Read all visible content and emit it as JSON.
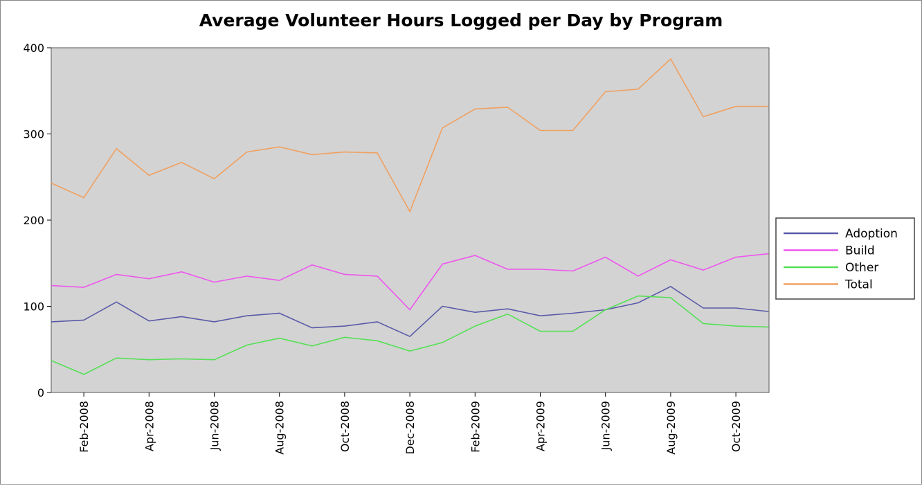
{
  "chart_data": {
    "type": "line",
    "title": "Average Volunteer Hours Logged per Day by Program",
    "xlabel": "",
    "ylabel": "",
    "ylim": [
      0,
      400
    ],
    "yticks": [
      "0",
      "100",
      "200",
      "300",
      "400"
    ],
    "ytick_values": [
      0,
      100,
      200,
      300,
      400
    ],
    "x": [
      "Jan-2008",
      "Feb-2008",
      "Mar-2008",
      "Apr-2008",
      "May-2008",
      "Jun-2008",
      "Jul-2008",
      "Aug-2008",
      "Sep-2008",
      "Oct-2008",
      "Nov-2008",
      "Dec-2008",
      "Jan-2009",
      "Feb-2009",
      "Mar-2009",
      "Apr-2009",
      "May-2009",
      "Jun-2009",
      "Jul-2009",
      "Aug-2009",
      "Sep-2009",
      "Oct-2009",
      "Nov-2009"
    ],
    "xticks": [
      "Feb-2008",
      "Apr-2008",
      "Jun-2008",
      "Aug-2008",
      "Oct-2008",
      "Dec-2008",
      "Feb-2009",
      "Apr-2009",
      "Jun-2009",
      "Aug-2009",
      "Oct-2009"
    ],
    "grid": false,
    "legend_position": "right",
    "series": [
      {
        "name": "Adoption",
        "color": "#5a5aa8",
        "values": [
          82,
          84,
          105,
          83,
          88,
          82,
          89,
          92,
          75,
          77,
          82,
          65,
          100,
          93,
          97,
          89,
          92,
          96,
          104,
          123,
          98,
          98,
          94
        ]
      },
      {
        "name": "Build",
        "color": "#ee55ee",
        "values": [
          124,
          122,
          137,
          132,
          140,
          128,
          135,
          130,
          148,
          137,
          135,
          96,
          149,
          159,
          143,
          143,
          141,
          157,
          135,
          154,
          142,
          157,
          161
        ]
      },
      {
        "name": "Other",
        "color": "#55e055",
        "values": [
          37,
          21,
          40,
          38,
          39,
          38,
          55,
          63,
          54,
          64,
          60,
          48,
          58,
          77,
          91,
          71,
          71,
          96,
          112,
          110,
          80,
          77,
          76
        ]
      },
      {
        "name": "Total",
        "color": "#f0a060",
        "values": [
          243,
          226,
          283,
          252,
          267,
          248,
          279,
          285,
          276,
          279,
          278,
          210,
          307,
          329,
          331,
          304,
          304,
          349,
          352,
          387,
          320,
          332,
          332
        ]
      }
    ]
  }
}
